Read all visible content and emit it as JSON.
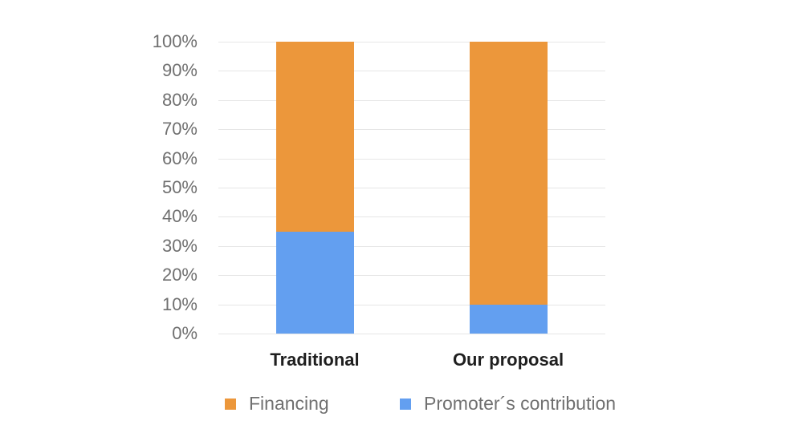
{
  "chart_data": {
    "type": "bar",
    "stacked": true,
    "categories": [
      "Traditional",
      "Our proposal"
    ],
    "series": [
      {
        "name": "Promoter´s contribution",
        "color": "#639ff0",
        "values": [
          35,
          10
        ]
      },
      {
        "name": "Financing",
        "color": "#ec973b",
        "values": [
          65,
          90
        ]
      }
    ],
    "title": "",
    "xlabel": "",
    "ylabel": "",
    "ylim": [
      0,
      100
    ],
    "yticks": [
      "0%",
      "10%",
      "20%",
      "30%",
      "40%",
      "50%",
      "60%",
      "70%",
      "80%",
      "90%",
      "100%"
    ],
    "grid": true,
    "legend_position": "bottom",
    "legend": [
      "Financing",
      "Promoter´s contribution"
    ]
  },
  "colors": {
    "financing": "#ec973b",
    "promoter": "#639ff0"
  }
}
